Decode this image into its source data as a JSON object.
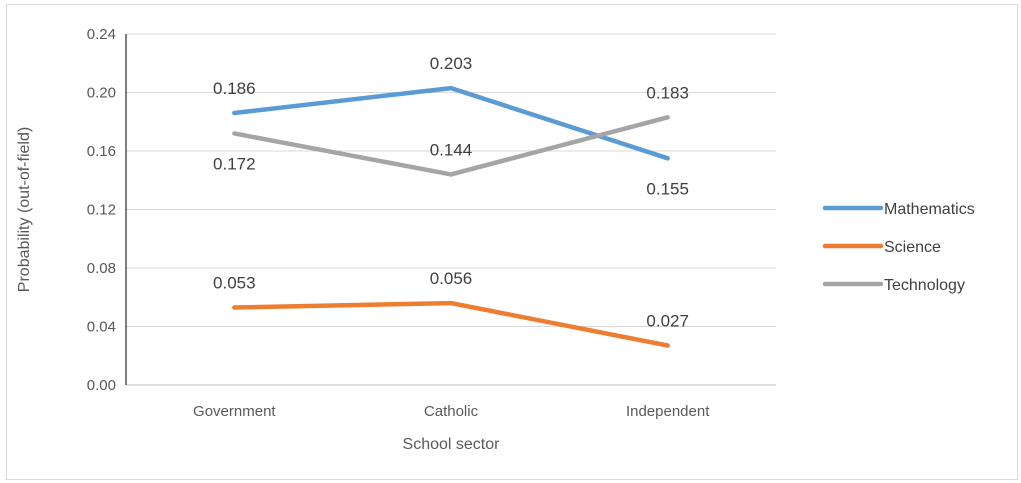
{
  "chart_data": {
    "type": "line",
    "title": "",
    "xlabel": "School sector",
    "ylabel": "Probability (out-of-field)",
    "categories": [
      "Government",
      "Catholic",
      "Independent"
    ],
    "ylim": [
      0,
      0.24
    ],
    "yticks": [
      "0.00",
      "0.04",
      "0.08",
      "0.12",
      "0.16",
      "0.20",
      "0.24"
    ],
    "grid": true,
    "legend_position": "right",
    "series": [
      {
        "name": "Mathematics",
        "color": "#5b9bd5",
        "values": [
          0.186,
          0.203,
          0.155
        ],
        "labels": [
          "0.186",
          "0.203",
          "0.155"
        ],
        "label_pos": [
          "above",
          "above",
          "below"
        ]
      },
      {
        "name": "Science",
        "color": "#ed7d31",
        "values": [
          0.053,
          0.056,
          0.027
        ],
        "labels": [
          "0.053",
          "0.056",
          "0.027"
        ],
        "label_pos": [
          "above",
          "above",
          "above"
        ]
      },
      {
        "name": "Technology",
        "color": "#a5a5a5",
        "values": [
          0.172,
          0.144,
          0.183
        ],
        "labels": [
          "0.172",
          "0.144",
          "0.183"
        ],
        "label_pos": [
          "below",
          "above",
          "above"
        ]
      }
    ]
  }
}
